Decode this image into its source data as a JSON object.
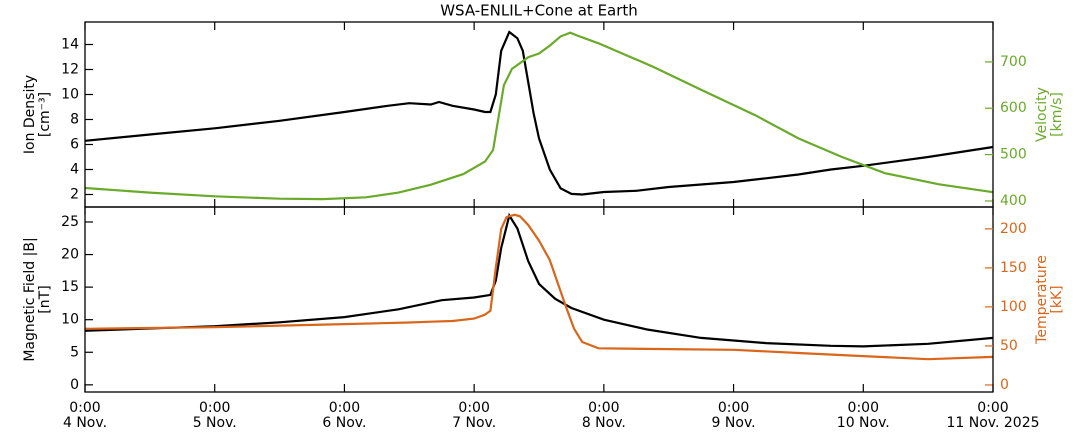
{
  "chart_data": [
    {
      "type": "line",
      "title": "WSA-ENLIL+Cone at Earth",
      "ylabel": [
        "Ion Density",
        "[cm⁻³]"
      ],
      "y2label": [
        "Velocity",
        "[km/s]"
      ],
      "xlim": [
        0,
        168
      ],
      "xticks": [
        0,
        24,
        48,
        72,
        96,
        120,
        144,
        168
      ],
      "ylim": [
        1,
        15.8
      ],
      "yticks": [
        2,
        4,
        6,
        8,
        10,
        12,
        14
      ],
      "y2lim": [
        387,
        786
      ],
      "y2ticks": [
        400,
        500,
        600,
        700
      ],
      "series": [
        {
          "name": "Ion Density",
          "color": "#000000",
          "x": [
            0,
            12,
            24,
            36,
            48,
            56,
            60,
            64,
            65.5,
            68,
            72,
            74,
            75,
            76,
            77,
            78.5,
            80,
            81,
            82,
            83,
            84,
            86,
            88,
            90,
            92,
            96,
            102,
            108,
            114,
            120,
            126,
            132,
            138,
            144,
            156,
            168
          ],
          "values": [
            6.3,
            6.8,
            7.3,
            7.9,
            8.6,
            9.1,
            9.3,
            9.2,
            9.4,
            9.1,
            8.8,
            8.6,
            8.6,
            10,
            13.5,
            15,
            14.5,
            13.5,
            11,
            8.5,
            6.5,
            4,
            2.5,
            2.05,
            2.0,
            2.2,
            2.3,
            2.6,
            2.8,
            3.0,
            3.3,
            3.6,
            4.0,
            4.3,
            5.0,
            5.8
          ]
        },
        {
          "name": "Velocity",
          "color": "#6aaa2a",
          "axis": "y2",
          "x": [
            0,
            12,
            24,
            36,
            44,
            52,
            58,
            64,
            70,
            74,
            75.5,
            76.5,
            77.5,
            79,
            82,
            84,
            86,
            88,
            89.8,
            91,
            95,
            105,
            114,
            124,
            132,
            140,
            148,
            158,
            168
          ],
          "values": [
            428,
            418,
            410,
            405,
            404,
            408,
            418,
            435,
            458,
            485,
            510,
            580,
            650,
            685,
            710,
            718,
            735,
            755,
            763,
            757,
            740,
            690,
            640,
            585,
            535,
            495,
            460,
            436,
            419
          ]
        }
      ]
    },
    {
      "type": "line",
      "ylabel": [
        "Magnetic Field |B|",
        "[nT]"
      ],
      "y2label": [
        "Temperature",
        "[kK]"
      ],
      "xlim": [
        0,
        168
      ],
      "xticks": [
        {
          "value": 0,
          "label": [
            "0:00",
            "4 Nov."
          ]
        },
        {
          "value": 24,
          "label": [
            "0:00",
            "5 Nov."
          ]
        },
        {
          "value": 48,
          "label": [
            "0:00",
            "6 Nov."
          ]
        },
        {
          "value": 72,
          "label": [
            "0:00",
            "7 Nov."
          ]
        },
        {
          "value": 96,
          "label": [
            "0:00",
            "8 Nov."
          ]
        },
        {
          "value": 120,
          "label": [
            "0:00",
            "9 Nov."
          ]
        },
        {
          "value": 144,
          "label": [
            "0:00",
            "10 Nov."
          ]
        },
        {
          "value": 168,
          "label": [
            "0:00",
            "11 Nov. 2025"
          ]
        }
      ],
      "ylim": [
        -1.1,
        27.3
      ],
      "yticks": [
        0,
        5,
        10,
        15,
        20,
        25
      ],
      "y2lim": [
        -9,
        228
      ],
      "y2ticks": [
        0,
        50,
        100,
        150,
        200
      ],
      "series": [
        {
          "name": "Magnetic Field |B|",
          "color": "#000000",
          "x": [
            0,
            24,
            36,
            48,
            58,
            66,
            72,
            75,
            76,
            77,
            78.5,
            80,
            82,
            84,
            87,
            90,
            96,
            104,
            114,
            126,
            138,
            144,
            156,
            168
          ],
          "values": [
            8.3,
            9.0,
            9.6,
            10.4,
            11.6,
            13,
            13.4,
            13.8,
            16,
            21,
            26,
            24,
            19,
            15.5,
            13.2,
            11.8,
            10,
            8.5,
            7.2,
            6.4,
            6.0,
            5.9,
            6.3,
            7.2
          ]
        },
        {
          "name": "Temperature",
          "color": "#d9661a",
          "axis": "y2",
          "x": [
            0,
            24,
            48,
            60,
            64,
            68,
            72,
            74,
            75,
            76,
            77,
            78,
            79.5,
            80.5,
            82,
            84,
            86,
            87.5,
            89,
            90.5,
            92,
            95,
            108,
            120,
            132,
            144,
            156,
            168
          ],
          "values": [
            72,
            74,
            78,
            80,
            81,
            82,
            85,
            90,
            95,
            150,
            200,
            215,
            218,
            216,
            205,
            185,
            160,
            130,
            100,
            72,
            55,
            47,
            46,
            45,
            41,
            37,
            33,
            36
          ]
        }
      ]
    }
  ]
}
